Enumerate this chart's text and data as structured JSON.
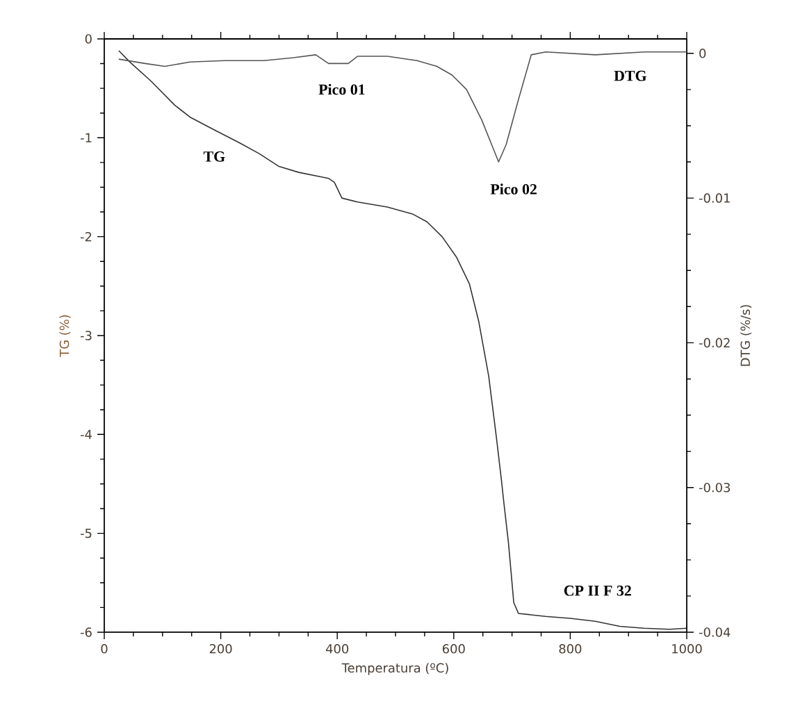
{
  "chart_data": {
    "type": "line",
    "xlabel": "Temperatura (ºC)",
    "ylabel": "TG (%)",
    "y2label": "DTG (%/s)",
    "xlim": [
      0,
      1000
    ],
    "xticks": [
      0,
      200,
      400,
      600,
      800,
      1000
    ],
    "ylim": [
      -6,
      0
    ],
    "yticks": [
      -6,
      -5,
      -4,
      -3,
      -2,
      -1,
      0
    ],
    "y2lim": [
      -0.04,
      0.001
    ],
    "y2ticks": [
      -0.04,
      -0.03,
      -0.02,
      -0.01,
      0
    ],
    "grid": false,
    "legend": false,
    "marker": "none",
    "line_style": "solid",
    "series": [
      {
        "name": "TG",
        "color": "#333333",
        "x": [
          25,
          45,
          79,
          121,
          147,
          189,
          232,
          266,
          300,
          334,
          385,
          395,
          408,
          435,
          486,
          529,
          554,
          580,
          605,
          627,
          643,
          660,
          673,
          682,
          686,
          694,
          703,
          711,
          758,
          800,
          843,
          885,
          927,
          970,
          1000
        ],
        "values": [
          -0.12,
          -0.24,
          -0.42,
          -0.67,
          -0.79,
          -0.92,
          -1.05,
          -1.16,
          -1.29,
          -1.35,
          -1.41,
          -1.45,
          -1.61,
          -1.65,
          -1.7,
          -1.77,
          -1.85,
          -2.0,
          -2.21,
          -2.48,
          -2.86,
          -3.41,
          -4.02,
          -4.47,
          -4.69,
          -5.1,
          -5.7,
          -5.81,
          -5.84,
          -5.86,
          -5.89,
          -5.94,
          -5.96,
          -5.97,
          -5.96
        ]
      },
      {
        "name": "DTG",
        "color": "#555555",
        "axis": "y2",
        "x": [
          25,
          70,
          104,
          147,
          206,
          274,
          325,
          363,
          385,
          419,
          435,
          486,
          537,
          571,
          597,
          622,
          648,
          665,
          677,
          690,
          711,
          733,
          758,
          843,
          928,
          1000
        ],
        "values": [
          -0.0004,
          -0.0007,
          -0.0009,
          -0.0006,
          -0.0005,
          -0.0005,
          -0.0003,
          -0.0001,
          -0.0007,
          -0.0007,
          -0.0002,
          -0.0002,
          -0.0005,
          -0.0009,
          -0.0015,
          -0.0025,
          -0.0046,
          -0.0063,
          -0.0075,
          -0.0063,
          -0.0032,
          -0.0001,
          0.0001,
          -0.0001,
          0.0001,
          0.0001
        ]
      }
    ],
    "annotations": [
      "Pico 01",
      "Pico 02",
      "CP II F 32"
    ]
  }
}
